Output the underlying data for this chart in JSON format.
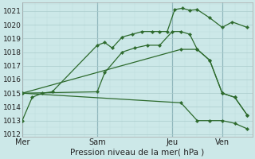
{
  "xlabel": "Pression niveau de la mer( hPa )",
  "bg_color": "#cce8e8",
  "grid_color_major": "#aacccc",
  "grid_color_minor": "#bbdddd",
  "line_color": "#2d6a2d",
  "ylim": [
    1011.8,
    1021.6
  ],
  "yticks": [
    1012,
    1013,
    1014,
    1015,
    1016,
    1017,
    1018,
    1019,
    1020,
    1021
  ],
  "xtick_labels": [
    "Mer",
    "Sam",
    "Jeu",
    "Ven"
  ],
  "xtick_positions": [
    0,
    3,
    6,
    8
  ],
  "vline_positions": [
    0,
    3,
    6,
    8
  ],
  "xlim": [
    0,
    9.2
  ],
  "figsize": [
    3.2,
    2.0
  ],
  "dpi": 100,
  "line1_x": [
    0,
    0.4,
    0.8,
    1.2,
    3.0,
    3.3,
    3.6,
    4.0,
    4.4,
    4.8,
    5.2,
    5.5,
    5.8,
    6.1,
    6.4,
    6.7,
    7.0,
    7.5,
    8.0,
    8.4,
    9.0
  ],
  "line1_y": [
    1013.0,
    1014.7,
    1015.0,
    1015.1,
    1018.5,
    1018.7,
    1018.3,
    1019.1,
    1019.3,
    1019.5,
    1019.5,
    1019.5,
    1019.5,
    1021.1,
    1021.2,
    1021.05,
    1021.1,
    1020.5,
    1019.8,
    1020.2,
    1019.8
  ],
  "line2_x": [
    0,
    3.0,
    3.3,
    4.0,
    4.5,
    5.0,
    5.5,
    6.0,
    6.35,
    6.7,
    7.0,
    7.5,
    8.0,
    8.5,
    9.0
  ],
  "line2_y": [
    1015.0,
    1015.1,
    1016.5,
    1018.0,
    1018.3,
    1018.5,
    1018.5,
    1019.5,
    1019.5,
    1019.3,
    1018.2,
    1017.4,
    1015.0,
    1014.7,
    1013.4
  ],
  "line3_x": [
    0,
    6.35,
    7.0,
    7.5,
    8.0,
    8.5,
    9.0
  ],
  "line3_y": [
    1015.0,
    1018.2,
    1018.2,
    1017.4,
    1015.0,
    1014.7,
    1013.4
  ],
  "line4_x": [
    0,
    6.35,
    7.0,
    7.5,
    8.0,
    8.5,
    9.0
  ],
  "line4_y": [
    1015.0,
    1014.3,
    1013.0,
    1013.0,
    1013.0,
    1012.8,
    1012.4
  ]
}
